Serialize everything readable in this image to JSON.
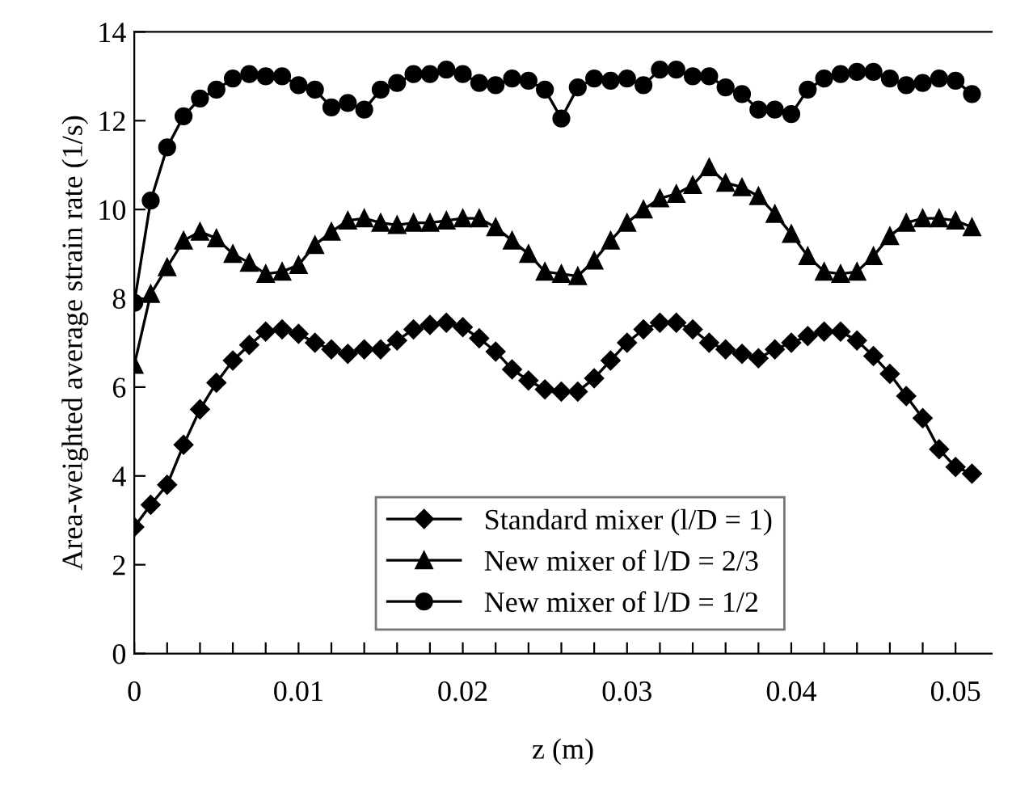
{
  "chart_data": {
    "type": "line",
    "xlabel": "z (m)",
    "ylabel": "Area-weighted average strain rate (1/s)",
    "x": [
      0,
      0.001,
      0.002,
      0.003,
      0.004,
      0.005,
      0.006,
      0.007,
      0.008,
      0.009,
      0.01,
      0.011,
      0.012,
      0.013,
      0.014,
      0.015,
      0.016,
      0.017,
      0.018,
      0.019,
      0.02,
      0.021,
      0.022,
      0.023,
      0.024,
      0.025,
      0.026,
      0.027,
      0.028,
      0.029,
      0.03,
      0.031,
      0.032,
      0.033,
      0.034,
      0.035,
      0.036,
      0.037,
      0.038,
      0.039,
      0.04,
      0.041,
      0.042,
      0.043,
      0.044,
      0.045,
      0.046,
      0.047,
      0.048,
      0.049,
      0.05,
      0.051
    ],
    "series": [
      {
        "name": "Standard mixer (l/D = 1)",
        "color": "#000000",
        "marker": "diamond",
        "values": [
          2.85,
          3.35,
          3.8,
          4.7,
          5.5,
          6.1,
          6.6,
          6.95,
          7.25,
          7.3,
          7.2,
          7.0,
          6.85,
          6.75,
          6.85,
          6.85,
          7.05,
          7.3,
          7.4,
          7.45,
          7.35,
          7.1,
          6.8,
          6.4,
          6.15,
          5.95,
          5.9,
          5.9,
          6.2,
          6.6,
          7.0,
          7.3,
          7.45,
          7.45,
          7.3,
          7.0,
          6.85,
          6.75,
          6.65,
          6.85,
          7.0,
          7.15,
          7.25,
          7.25,
          7.05,
          6.7,
          6.3,
          5.8,
          5.3,
          4.6,
          4.2,
          4.05
        ]
      },
      {
        "name": "New mixer of l/D = 2/3",
        "color": "#000000",
        "marker": "triangle",
        "values": [
          6.5,
          8.1,
          8.7,
          9.3,
          9.5,
          9.35,
          9.0,
          8.8,
          8.55,
          8.6,
          8.75,
          9.2,
          9.5,
          9.75,
          9.8,
          9.7,
          9.65,
          9.7,
          9.7,
          9.75,
          9.8,
          9.8,
          9.6,
          9.3,
          9.0,
          8.6,
          8.55,
          8.5,
          8.85,
          9.3,
          9.7,
          10.0,
          10.25,
          10.35,
          10.55,
          10.95,
          10.6,
          10.5,
          10.3,
          9.9,
          9.45,
          8.95,
          8.6,
          8.55,
          8.6,
          8.95,
          9.4,
          9.7,
          9.8,
          9.8,
          9.75,
          9.6
        ]
      },
      {
        "name": "New mixer of l/D = 1/2",
        "color": "#000000",
        "marker": "circle",
        "values": [
          7.9,
          10.2,
          11.4,
          12.1,
          12.5,
          12.7,
          12.95,
          13.05,
          13.0,
          13.0,
          12.8,
          12.7,
          12.3,
          12.4,
          12.25,
          12.7,
          12.85,
          13.05,
          13.05,
          13.15,
          13.05,
          12.85,
          12.8,
          12.95,
          12.9,
          12.7,
          12.05,
          12.75,
          12.95,
          12.9,
          12.95,
          12.8,
          13.15,
          13.15,
          13.0,
          13.0,
          12.75,
          12.6,
          12.25,
          12.25,
          12.15,
          12.7,
          12.95,
          13.05,
          13.1,
          13.1,
          12.95,
          12.8,
          12.85,
          12.95,
          12.9,
          12.6
        ]
      }
    ],
    "xlim": [
      0,
      0.0522
    ],
    "ylim": [
      0,
      14
    ],
    "xticks": [
      0,
      {
        "value": 0.002,
        "label": null
      },
      {
        "value": 0.004,
        "label": null
      },
      {
        "value": 0.006,
        "label": null
      },
      {
        "value": 0.008,
        "label": null
      },
      0.01,
      {
        "value": 0.012,
        "label": null
      },
      {
        "value": 0.014,
        "label": null
      },
      {
        "value": 0.016,
        "label": null
      },
      {
        "value": 0.018,
        "label": null
      },
      0.02,
      {
        "value": 0.022,
        "label": null
      },
      {
        "value": 0.024,
        "label": null
      },
      {
        "value": 0.026,
        "label": null
      },
      {
        "value": 0.028,
        "label": null
      },
      0.03,
      {
        "value": 0.032,
        "label": null
      },
      {
        "value": 0.034,
        "label": null
      },
      {
        "value": 0.036,
        "label": null
      },
      {
        "value": 0.038,
        "label": null
      },
      0.04,
      {
        "value": 0.042,
        "label": null
      },
      {
        "value": 0.044,
        "label": null
      },
      {
        "value": 0.046,
        "label": null
      },
      {
        "value": 0.048,
        "label": null
      },
      0.05
    ],
    "yticks": [
      0,
      2,
      4,
      6,
      8,
      10,
      12,
      14
    ],
    "grid": false,
    "legend": "bottom",
    "line_style": "solid"
  }
}
